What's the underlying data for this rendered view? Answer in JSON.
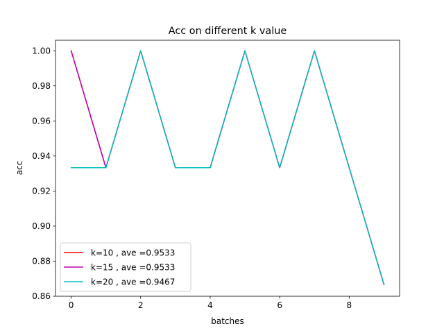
{
  "chart_data": {
    "type": "line",
    "title": "Acc on different k value",
    "xlabel": "batches",
    "ylabel": "acc",
    "xlim": [
      -0.45,
      9.45
    ],
    "ylim": [
      0.86,
      1.006
    ],
    "xticks": [
      0,
      2,
      4,
      6,
      8
    ],
    "xtick_labels": [
      "0",
      "2",
      "4",
      "6",
      "8"
    ],
    "yticks": [
      0.86,
      0.88,
      0.9,
      0.92,
      0.94,
      0.96,
      0.98,
      1.0
    ],
    "ytick_labels": [
      "0.86",
      "0.88",
      "0.90",
      "0.92",
      "0.94",
      "0.96",
      "0.98",
      "1.00"
    ],
    "x": [
      0,
      1,
      2,
      3,
      4,
      5,
      6,
      7,
      8,
      9
    ],
    "grid": false,
    "legend_position": "lower-left",
    "series": [
      {
        "name": "k=10 , ave =0.9533",
        "color": "#ff0000",
        "values": [
          1.0,
          0.9333,
          1.0,
          0.9333,
          0.9333,
          1.0,
          0.9333,
          1.0,
          0.9333,
          0.8667
        ]
      },
      {
        "name": "k=15 , ave =0.9533",
        "color": "#bf00bf",
        "values": [
          1.0,
          0.9333,
          1.0,
          0.9333,
          0.9333,
          1.0,
          0.9333,
          1.0,
          0.9333,
          0.8667
        ]
      },
      {
        "name": "k=20 , ave =0.9467",
        "color": "#00bfbf",
        "values": [
          0.9333,
          0.9333,
          1.0,
          0.9333,
          0.9333,
          1.0,
          0.9333,
          1.0,
          0.9333,
          0.8667
        ]
      }
    ]
  }
}
